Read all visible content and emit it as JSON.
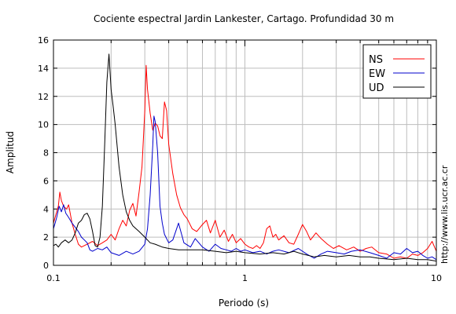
{
  "chart_data": {
    "type": "line",
    "title": "Cociente espectral Jardin Lankester, Cartago. Profundidad 30 m",
    "xlabel": "Periodo (s)",
    "ylabel": "Amplitud",
    "xscale": "log",
    "xlim": [
      0.1,
      10
    ],
    "ylim": [
      0,
      16
    ],
    "grid": true,
    "legend_position": "top-right",
    "x_tick_labels": [
      "0.1",
      "1",
      "10"
    ],
    "y_tick_labels": [
      "0",
      "2",
      "4",
      "6",
      "8",
      "10",
      "12",
      "14",
      "16"
    ],
    "credit": "http://www.lis.ucr.ac.cr",
    "series": [
      {
        "name": "NS",
        "color": "#ff0000",
        "points": [
          [
            0.1,
            3.0
          ],
          [
            0.103,
            3.6
          ],
          [
            0.106,
            4.2
          ],
          [
            0.108,
            5.2
          ],
          [
            0.11,
            4.6
          ],
          [
            0.113,
            4.2
          ],
          [
            0.117,
            4.0
          ],
          [
            0.12,
            4.3
          ],
          [
            0.125,
            3.0
          ],
          [
            0.13,
            2.2
          ],
          [
            0.135,
            1.5
          ],
          [
            0.14,
            1.3
          ],
          [
            0.15,
            1.5
          ],
          [
            0.16,
            1.7
          ],
          [
            0.17,
            1.4
          ],
          [
            0.18,
            1.6
          ],
          [
            0.19,
            1.8
          ],
          [
            0.2,
            2.2
          ],
          [
            0.21,
            1.8
          ],
          [
            0.22,
            2.6
          ],
          [
            0.23,
            3.2
          ],
          [
            0.24,
            2.8
          ],
          [
            0.25,
            3.9
          ],
          [
            0.26,
            4.4
          ],
          [
            0.27,
            3.5
          ],
          [
            0.28,
            5.2
          ],
          [
            0.29,
            7.0
          ],
          [
            0.3,
            11.0
          ],
          [
            0.305,
            14.2
          ],
          [
            0.31,
            12.5
          ],
          [
            0.32,
            10.8
          ],
          [
            0.33,
            9.6
          ],
          [
            0.34,
            10.1
          ],
          [
            0.35,
            9.9
          ],
          [
            0.36,
            9.2
          ],
          [
            0.37,
            9.0
          ],
          [
            0.38,
            11.6
          ],
          [
            0.39,
            11.0
          ],
          [
            0.4,
            8.6
          ],
          [
            0.42,
            6.5
          ],
          [
            0.44,
            5.0
          ],
          [
            0.46,
            4.1
          ],
          [
            0.48,
            3.6
          ],
          [
            0.5,
            3.3
          ],
          [
            0.53,
            2.6
          ],
          [
            0.56,
            2.4
          ],
          [
            0.6,
            2.9
          ],
          [
            0.63,
            3.2
          ],
          [
            0.66,
            2.3
          ],
          [
            0.7,
            3.2
          ],
          [
            0.74,
            2.0
          ],
          [
            0.78,
            2.5
          ],
          [
            0.82,
            1.7
          ],
          [
            0.86,
            2.2
          ],
          [
            0.9,
            1.6
          ],
          [
            0.95,
            1.9
          ],
          [
            1.0,
            1.5
          ],
          [
            1.05,
            1.3
          ],
          [
            1.1,
            1.2
          ],
          [
            1.15,
            1.4
          ],
          [
            1.2,
            1.2
          ],
          [
            1.25,
            1.6
          ],
          [
            1.3,
            2.6
          ],
          [
            1.35,
            2.8
          ],
          [
            1.4,
            2.0
          ],
          [
            1.45,
            2.2
          ],
          [
            1.5,
            1.8
          ],
          [
            1.6,
            2.1
          ],
          [
            1.7,
            1.6
          ],
          [
            1.8,
            1.5
          ],
          [
            1.9,
            2.2
          ],
          [
            2.0,
            2.9
          ],
          [
            2.1,
            2.4
          ],
          [
            2.2,
            1.8
          ],
          [
            2.35,
            2.3
          ],
          [
            2.5,
            1.9
          ],
          [
            2.7,
            1.5
          ],
          [
            2.9,
            1.2
          ],
          [
            3.1,
            1.4
          ],
          [
            3.4,
            1.1
          ],
          [
            3.7,
            1.3
          ],
          [
            4.0,
            1.0
          ],
          [
            4.3,
            1.2
          ],
          [
            4.6,
            1.3
          ],
          [
            5.0,
            0.9
          ],
          [
            5.5,
            0.8
          ],
          [
            6.0,
            0.5
          ],
          [
            6.5,
            0.6
          ],
          [
            7.0,
            0.5
          ],
          [
            7.5,
            0.8
          ],
          [
            8.0,
            0.7
          ],
          [
            8.5,
            0.9
          ],
          [
            9.0,
            1.2
          ],
          [
            9.5,
            1.7
          ],
          [
            10.0,
            1.0
          ]
        ]
      },
      {
        "name": "EW",
        "color": "#0000cc",
        "points": [
          [
            0.1,
            2.6
          ],
          [
            0.102,
            3.0
          ],
          [
            0.104,
            3.4
          ],
          [
            0.107,
            4.2
          ],
          [
            0.11,
            3.8
          ],
          [
            0.113,
            4.3
          ],
          [
            0.116,
            3.7
          ],
          [
            0.12,
            3.4
          ],
          [
            0.125,
            3.0
          ],
          [
            0.13,
            2.7
          ],
          [
            0.135,
            2.4
          ],
          [
            0.14,
            2.0
          ],
          [
            0.145,
            1.8
          ],
          [
            0.15,
            1.6
          ],
          [
            0.155,
            1.1
          ],
          [
            0.16,
            1.0
          ],
          [
            0.17,
            1.2
          ],
          [
            0.18,
            1.1
          ],
          [
            0.19,
            1.3
          ],
          [
            0.2,
            0.9
          ],
          [
            0.22,
            0.7
          ],
          [
            0.24,
            1.0
          ],
          [
            0.26,
            0.8
          ],
          [
            0.28,
            1.0
          ],
          [
            0.3,
            1.5
          ],
          [
            0.31,
            2.6
          ],
          [
            0.32,
            5.0
          ],
          [
            0.33,
            8.5
          ],
          [
            0.335,
            10.6
          ],
          [
            0.34,
            10.2
          ],
          [
            0.35,
            8.0
          ],
          [
            0.36,
            4.2
          ],
          [
            0.37,
            3.0
          ],
          [
            0.38,
            2.2
          ],
          [
            0.4,
            1.6
          ],
          [
            0.42,
            1.8
          ],
          [
            0.45,
            3.0
          ],
          [
            0.48,
            1.6
          ],
          [
            0.52,
            1.3
          ],
          [
            0.55,
            1.9
          ],
          [
            0.6,
            1.3
          ],
          [
            0.65,
            1.0
          ],
          [
            0.7,
            1.5
          ],
          [
            0.75,
            1.2
          ],
          [
            0.8,
            1.1
          ],
          [
            0.85,
            1.0
          ],
          [
            0.9,
            1.2
          ],
          [
            0.95,
            1.0
          ],
          [
            1.0,
            1.1
          ],
          [
            1.1,
            0.9
          ],
          [
            1.2,
            1.0
          ],
          [
            1.3,
            0.8
          ],
          [
            1.4,
            1.0
          ],
          [
            1.5,
            1.1
          ],
          [
            1.7,
            0.9
          ],
          [
            1.9,
            1.2
          ],
          [
            2.1,
            0.8
          ],
          [
            2.3,
            0.5
          ],
          [
            2.5,
            0.8
          ],
          [
            2.7,
            1.0
          ],
          [
            3.0,
            0.9
          ],
          [
            3.3,
            0.8
          ],
          [
            3.6,
            1.0
          ],
          [
            4.0,
            1.1
          ],
          [
            4.5,
            0.9
          ],
          [
            5.0,
            0.7
          ],
          [
            5.5,
            0.5
          ],
          [
            6.0,
            0.9
          ],
          [
            6.5,
            0.8
          ],
          [
            7.0,
            1.2
          ],
          [
            7.5,
            0.9
          ],
          [
            8.0,
            1.0
          ],
          [
            8.5,
            0.7
          ],
          [
            9.0,
            0.5
          ],
          [
            9.5,
            0.6
          ],
          [
            10.0,
            0.4
          ]
        ]
      },
      {
        "name": "UD",
        "color": "#000000",
        "points": [
          [
            0.1,
            1.4
          ],
          [
            0.103,
            1.5
          ],
          [
            0.106,
            1.3
          ],
          [
            0.11,
            1.6
          ],
          [
            0.115,
            1.8
          ],
          [
            0.12,
            1.6
          ],
          [
            0.125,
            1.8
          ],
          [
            0.13,
            2.3
          ],
          [
            0.135,
            3.0
          ],
          [
            0.14,
            3.2
          ],
          [
            0.145,
            3.6
          ],
          [
            0.15,
            3.7
          ],
          [
            0.155,
            3.3
          ],
          [
            0.16,
            2.4
          ],
          [
            0.165,
            1.4
          ],
          [
            0.17,
            1.3
          ],
          [
            0.175,
            2.0
          ],
          [
            0.18,
            4.2
          ],
          [
            0.185,
            8.5
          ],
          [
            0.19,
            13.0
          ],
          [
            0.195,
            15.0
          ],
          [
            0.2,
            12.5
          ],
          [
            0.205,
            11.3
          ],
          [
            0.21,
            10.0
          ],
          [
            0.22,
            7.0
          ],
          [
            0.23,
            5.0
          ],
          [
            0.24,
            3.8
          ],
          [
            0.25,
            3.2
          ],
          [
            0.26,
            2.8
          ],
          [
            0.28,
            2.4
          ],
          [
            0.3,
            2.0
          ],
          [
            0.32,
            1.6
          ],
          [
            0.34,
            1.5
          ],
          [
            0.37,
            1.3
          ],
          [
            0.4,
            1.2
          ],
          [
            0.45,
            1.1
          ],
          [
            0.5,
            1.1
          ],
          [
            0.6,
            1.1
          ],
          [
            0.7,
            1.0
          ],
          [
            0.8,
            0.9
          ],
          [
            0.9,
            1.0
          ],
          [
            1.0,
            0.9
          ],
          [
            1.2,
            0.8
          ],
          [
            1.4,
            0.9
          ],
          [
            1.6,
            0.8
          ],
          [
            1.8,
            1.0
          ],
          [
            2.0,
            0.8
          ],
          [
            2.3,
            0.6
          ],
          [
            2.6,
            0.7
          ],
          [
            3.0,
            0.6
          ],
          [
            3.5,
            0.7
          ],
          [
            4.0,
            0.6
          ],
          [
            4.5,
            0.6
          ],
          [
            5.0,
            0.5
          ],
          [
            6.0,
            0.4
          ],
          [
            7.0,
            0.5
          ],
          [
            8.0,
            0.4
          ],
          [
            9.0,
            0.4
          ],
          [
            10.0,
            0.3
          ]
        ]
      }
    ]
  }
}
